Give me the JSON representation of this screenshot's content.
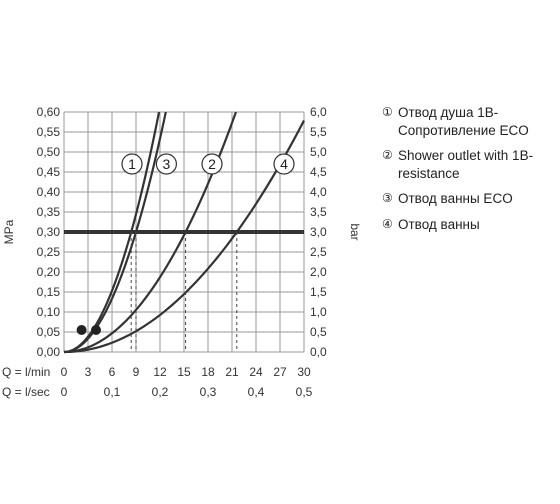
{
  "chart_data": {
    "type": "line",
    "y_left_label": "MPa",
    "y_right_label": "bar",
    "y_left_ticks": [
      "0,00",
      "0,05",
      "0,10",
      "0,15",
      "0,20",
      "0,25",
      "0,30",
      "0,35",
      "0,40",
      "0,45",
      "0,50",
      "0,55",
      "0,60"
    ],
    "y_right_ticks": [
      "0,0",
      "0,5",
      "1,0",
      "1,5",
      "2,0",
      "2,5",
      "3,0",
      "3,5",
      "4,0",
      "4,5",
      "5,0",
      "5,5",
      "6,0"
    ],
    "ylim": [
      0,
      0.6
    ],
    "xlim": [
      0,
      30
    ],
    "x_row1_label": "Q = l/min",
    "x_row1_ticks": [
      "0",
      "3",
      "6",
      "9",
      "12",
      "15",
      "18",
      "21",
      "24",
      "27",
      "30"
    ],
    "x_row2_label": "Q = l/sec",
    "x_row2_ticks": [
      {
        "label": "0",
        "q": 0
      },
      {
        "label": "0,1",
        "q": 6
      },
      {
        "label": "0,2",
        "q": 12
      },
      {
        "label": "0,3",
        "q": 18
      },
      {
        "label": "0,4",
        "q": 24
      },
      {
        "label": "0,5",
        "q": 30
      }
    ],
    "grid": true,
    "reference_line": {
      "y": 0.3
    },
    "markers": [
      {
        "x": 2.2,
        "y": 0.055
      },
      {
        "x": 4.0,
        "y": 0.055
      }
    ],
    "series": [
      {
        "name": "1",
        "q_at_ref": 8.4,
        "label_pos": {
          "x": 8.5,
          "y": 0.47
        }
      },
      {
        "name": "3",
        "q_at_ref": 9.0,
        "label_pos": {
          "x": 12.8,
          "y": 0.47
        }
      },
      {
        "name": "2",
        "q_at_ref": 15.2,
        "label_pos": {
          "x": 18.5,
          "y": 0.47
        }
      },
      {
        "name": "4",
        "q_at_ref": 21.6,
        "label_pos": {
          "x": 27.5,
          "y": 0.47
        }
      }
    ]
  },
  "legend": [
    {
      "num": "①",
      "text": "Отвод душа 1В-Сопротивление  ECO"
    },
    {
      "num": "②",
      "text": "Shower outlet with 1В-resistance"
    },
    {
      "num": "③",
      "text": "Отвод ванны ECO"
    },
    {
      "num": "④",
      "text": "Отвод ванны"
    }
  ]
}
